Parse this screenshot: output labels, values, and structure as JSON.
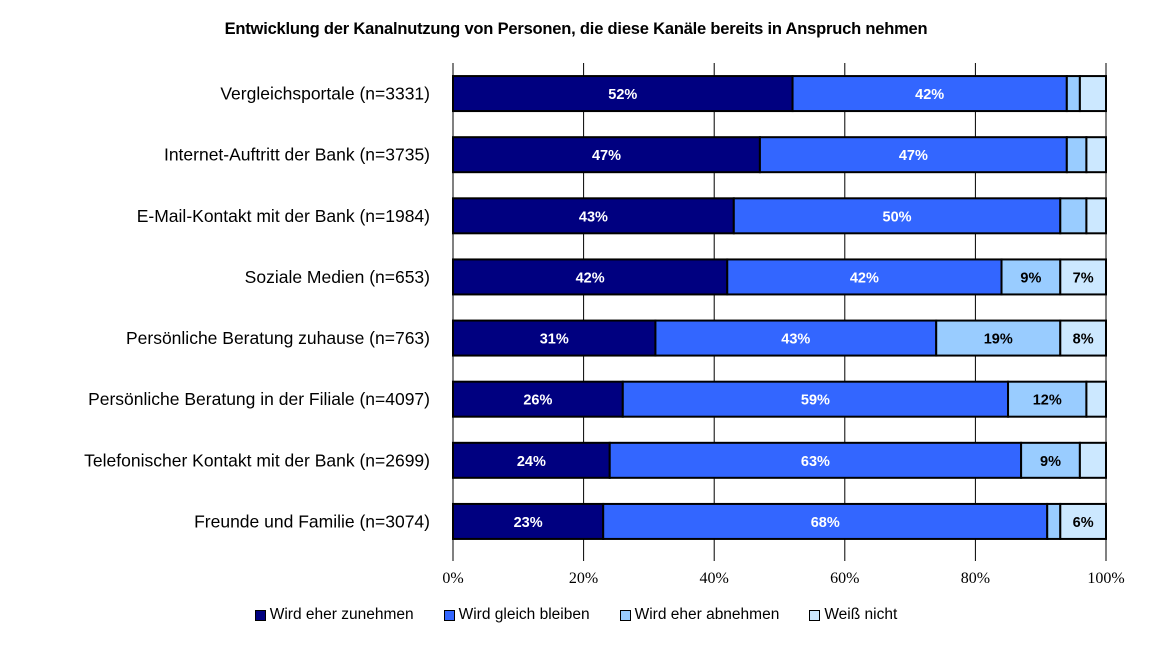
{
  "chart_data": {
    "type": "bar",
    "orientation": "horizontal",
    "stacked": "percent",
    "title": "Entwicklung der Kanalnutzung von Personen, die diese Kanäle bereits in Anspruch nehmen",
    "xlabel": "",
    "ylabel": "",
    "xlim": [
      0,
      100
    ],
    "x_ticks": [
      "0%",
      "20%",
      "40%",
      "60%",
      "80%",
      "100%"
    ],
    "grid": "vertical",
    "legend_position": "bottom",
    "categories": [
      "Vergleichsportale  (n=3331)",
      "Internet-Auftritt der Bank (n=3735)",
      "E-Mail-Kontakt mit der Bank (n=1984)",
      "Soziale Medien (n=653)",
      "Persönliche Beratung zuhause (n=763)",
      "Persönliche Beratung in der Filiale (n=4097)",
      "Telefonischer Kontakt mit der Bank (n=2699)",
      "Freunde und Familie (n=3074)"
    ],
    "series": [
      {
        "name": "Wird eher zunehmen",
        "color": "#000080",
        "label_color": "#ffffff",
        "values": [
          52,
          47,
          43,
          42,
          31,
          26,
          24,
          23
        ],
        "labels": [
          "52%",
          "47%",
          "43%",
          "42%",
          "31%",
          "26%",
          "24%",
          "23%"
        ]
      },
      {
        "name": "Wird gleich bleiben",
        "color": "#3366ff",
        "label_color": "#ffffff",
        "values": [
          42,
          47,
          50,
          42,
          43,
          59,
          63,
          68
        ],
        "labels": [
          "42%",
          "47%",
          "50%",
          "42%",
          "43%",
          "59%",
          "63%",
          "68%"
        ]
      },
      {
        "name": "Wird eher abnehmen",
        "color": "#99ccff",
        "label_color": "#000000",
        "values": [
          2,
          3,
          4,
          9,
          19,
          12,
          9,
          2
        ],
        "labels": [
          "",
          "",
          "",
          "9%",
          "19%",
          "12%",
          "9%",
          ""
        ]
      },
      {
        "name": "Weiß nicht",
        "color": "#cce8ff",
        "label_color": "#000000",
        "values": [
          3,
          3,
          3,
          7,
          8,
          3,
          4,
          6
        ],
        "labels": [
          "",
          "",
          "",
          "7%",
          "8%",
          "",
          "",
          "6%"
        ]
      }
    ]
  }
}
